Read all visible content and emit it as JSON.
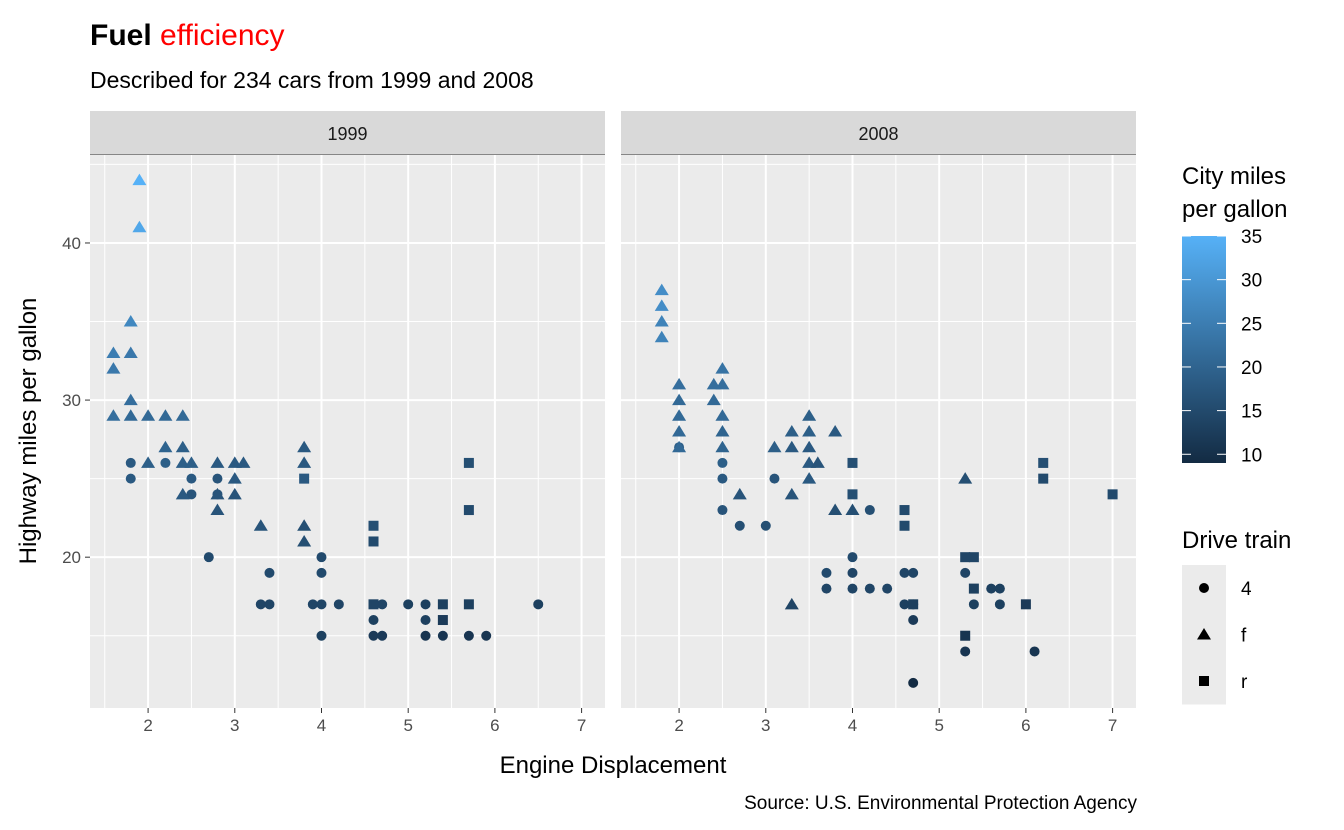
{
  "chart_data": {
    "type": "scatter",
    "title_bold": "Fuel",
    "title_colored": "efficiency",
    "title_colored_color": "#FF0000",
    "subtitle": "Described for 234 cars from 1999 and 2008",
    "caption": "Source: U.S. Environmental Protection Agency",
    "xlabel": "Engine Displacement",
    "ylabel": "Highway miles per gallon",
    "xlim": [
      1.33,
      7.27
    ],
    "ylim": [
      10.4,
      45.6
    ],
    "xticks": [
      2,
      3,
      4,
      5,
      6,
      7
    ],
    "yticks": [
      20,
      30,
      40
    ],
    "grid": true,
    "legend_position": "right",
    "color_legend": {
      "title_line1": "City miles",
      "title_line2": "per gallon",
      "ticks": [
        35,
        30,
        25,
        20,
        15,
        10
      ],
      "low": 9,
      "high": 35,
      "low_color": "#132B43",
      "high_color": "#56B1F7"
    },
    "shape_legend": {
      "title": "Drive train",
      "entries": [
        {
          "label": "4",
          "shape": "circle"
        },
        {
          "label": "f",
          "shape": "triangle"
        },
        {
          "label": "r",
          "shape": "square"
        }
      ]
    },
    "point_fields": [
      "displ",
      "hwy",
      "cty"
    ],
    "facets": [
      {
        "label": "1999",
        "series": {
          "f": [
            [
              1.9,
              44,
              35
            ],
            [
              1.9,
              41,
              33
            ],
            [
              1.6,
              33,
              25
            ],
            [
              1.6,
              32,
              24
            ],
            [
              1.8,
              35,
              27
            ],
            [
              1.8,
              33,
              24
            ],
            [
              1.8,
              30,
              22
            ],
            [
              1.6,
              29,
              22
            ],
            [
              1.8,
              29,
              21
            ],
            [
              2.0,
              29,
              21
            ],
            [
              2.2,
              29,
              21
            ],
            [
              2.4,
              29,
              21
            ],
            [
              2.0,
              26,
              19
            ],
            [
              2.2,
              27,
              20
            ],
            [
              2.4,
              27,
              19
            ],
            [
              2.4,
              26,
              19
            ],
            [
              2.5,
              26,
              19
            ],
            [
              2.4,
              24,
              18
            ],
            [
              2.8,
              26,
              18
            ],
            [
              2.8,
              24,
              17
            ],
            [
              2.8,
              23,
              17
            ],
            [
              3.0,
              26,
              18
            ],
            [
              3.0,
              25,
              18
            ],
            [
              3.0,
              24,
              17
            ],
            [
              3.1,
              26,
              18
            ],
            [
              3.3,
              22,
              17
            ],
            [
              3.8,
              27,
              18
            ],
            [
              3.8,
              26,
              18
            ],
            [
              3.8,
              22,
              16
            ],
            [
              3.8,
              21,
              16
            ]
          ],
          "4": [
            [
              1.8,
              26,
              18
            ],
            [
              1.8,
              25,
              18
            ],
            [
              2.2,
              26,
              19
            ],
            [
              2.5,
              25,
              18
            ],
            [
              2.5,
              24,
              17
            ],
            [
              2.8,
              25,
              17
            ],
            [
              2.8,
              24,
              17
            ],
            [
              2.7,
              20,
              15
            ],
            [
              3.3,
              17,
              14
            ],
            [
              3.4,
              17,
              14
            ],
            [
              3.4,
              19,
              15
            ],
            [
              3.9,
              17,
              14
            ],
            [
              4.0,
              20,
              15
            ],
            [
              4.0,
              19,
              15
            ],
            [
              4.0,
              17,
              14
            ],
            [
              4.0,
              15,
              13
            ],
            [
              4.2,
              17,
              14
            ],
            [
              4.6,
              16,
              13
            ],
            [
              4.6,
              15,
              12
            ],
            [
              4.7,
              17,
              14
            ],
            [
              4.7,
              15,
              12
            ],
            [
              5.0,
              17,
              13
            ],
            [
              5.2,
              17,
              13
            ],
            [
              5.2,
              16,
              13
            ],
            [
              5.2,
              15,
              11
            ],
            [
              5.4,
              15,
              11
            ],
            [
              5.7,
              15,
              11
            ],
            [
              5.9,
              15,
              11
            ],
            [
              6.5,
              17,
              13
            ]
          ],
          "r": [
            [
              3.8,
              25,
              18
            ],
            [
              4.6,
              22,
              16
            ],
            [
              4.6,
              21,
              15
            ],
            [
              4.6,
              17,
              14
            ],
            [
              5.4,
              17,
              13
            ],
            [
              5.4,
              16,
              12
            ],
            [
              5.7,
              26,
              16
            ],
            [
              5.7,
              23,
              15
            ],
            [
              5.7,
              17,
              13
            ]
          ]
        }
      },
      {
        "label": "2008",
        "series": {
          "f": [
            [
              1.8,
              37,
              28
            ],
            [
              1.8,
              36,
              28
            ],
            [
              1.8,
              35,
              26
            ],
            [
              1.8,
              34,
              26
            ],
            [
              2.0,
              31,
              22
            ],
            [
              2.0,
              30,
              21
            ],
            [
              2.0,
              29,
              21
            ],
            [
              2.0,
              28,
              21
            ],
            [
              2.0,
              27,
              21
            ],
            [
              2.5,
              32,
              23
            ],
            [
              2.5,
              31,
              22
            ],
            [
              2.4,
              31,
              22
            ],
            [
              2.4,
              30,
              21
            ],
            [
              2.5,
              29,
              21
            ],
            [
              2.5,
              28,
              20
            ],
            [
              2.5,
              27,
              20
            ],
            [
              2.7,
              24,
              17
            ],
            [
              3.1,
              27,
              19
            ],
            [
              3.3,
              28,
              19
            ],
            [
              3.3,
              27,
              18
            ],
            [
              3.3,
              24,
              17
            ],
            [
              3.3,
              17,
              14
            ],
            [
              3.5,
              28,
              19
            ],
            [
              3.5,
              29,
              19
            ],
            [
              3.5,
              27,
              18
            ],
            [
              3.5,
              26,
              18
            ],
            [
              3.5,
              25,
              18
            ],
            [
              3.6,
              26,
              17
            ],
            [
              3.8,
              28,
              18
            ],
            [
              3.8,
              23,
              16
            ],
            [
              4.0,
              23,
              16
            ],
            [
              5.3,
              25,
              16
            ]
          ],
          "4": [
            [
              2.0,
              27,
              19
            ],
            [
              2.5,
              26,
              19
            ],
            [
              2.5,
              25,
              18
            ],
            [
              2.5,
              23,
              17
            ],
            [
              2.7,
              22,
              16
            ],
            [
              3.0,
              22,
              16
            ],
            [
              3.1,
              25,
              17
            ],
            [
              3.7,
              19,
              15
            ],
            [
              3.7,
              18,
              14
            ],
            [
              4.0,
              20,
              15
            ],
            [
              4.0,
              19,
              14
            ],
            [
              4.0,
              18,
              14
            ],
            [
              4.2,
              23,
              16
            ],
            [
              4.2,
              18,
              14
            ],
            [
              4.4,
              18,
              14
            ],
            [
              4.6,
              19,
              14
            ],
            [
              4.6,
              17,
              13
            ],
            [
              4.7,
              19,
              14
            ],
            [
              4.7,
              17,
              13
            ],
            [
              4.7,
              16,
              12
            ],
            [
              4.7,
              12,
              9
            ],
            [
              5.3,
              19,
              14
            ],
            [
              5.3,
              14,
              11
            ],
            [
              5.4,
              17,
              13
            ],
            [
              5.6,
              18,
              13
            ],
            [
              5.7,
              18,
              13
            ],
            [
              5.7,
              17,
              13
            ],
            [
              6.1,
              14,
              11
            ]
          ],
          "r": [
            [
              4.0,
              26,
              16
            ],
            [
              4.0,
              24,
              16
            ],
            [
              4.6,
              23,
              15
            ],
            [
              4.6,
              22,
              15
            ],
            [
              4.7,
              17,
              13
            ],
            [
              5.3,
              20,
              14
            ],
            [
              5.4,
              20,
              14
            ],
            [
              5.4,
              18,
              13
            ],
            [
              5.3,
              15,
              11
            ],
            [
              6.0,
              17,
              12
            ],
            [
              6.2,
              26,
              16
            ],
            [
              6.2,
              25,
              15
            ],
            [
              7.0,
              24,
              15
            ]
          ]
        }
      }
    ]
  }
}
